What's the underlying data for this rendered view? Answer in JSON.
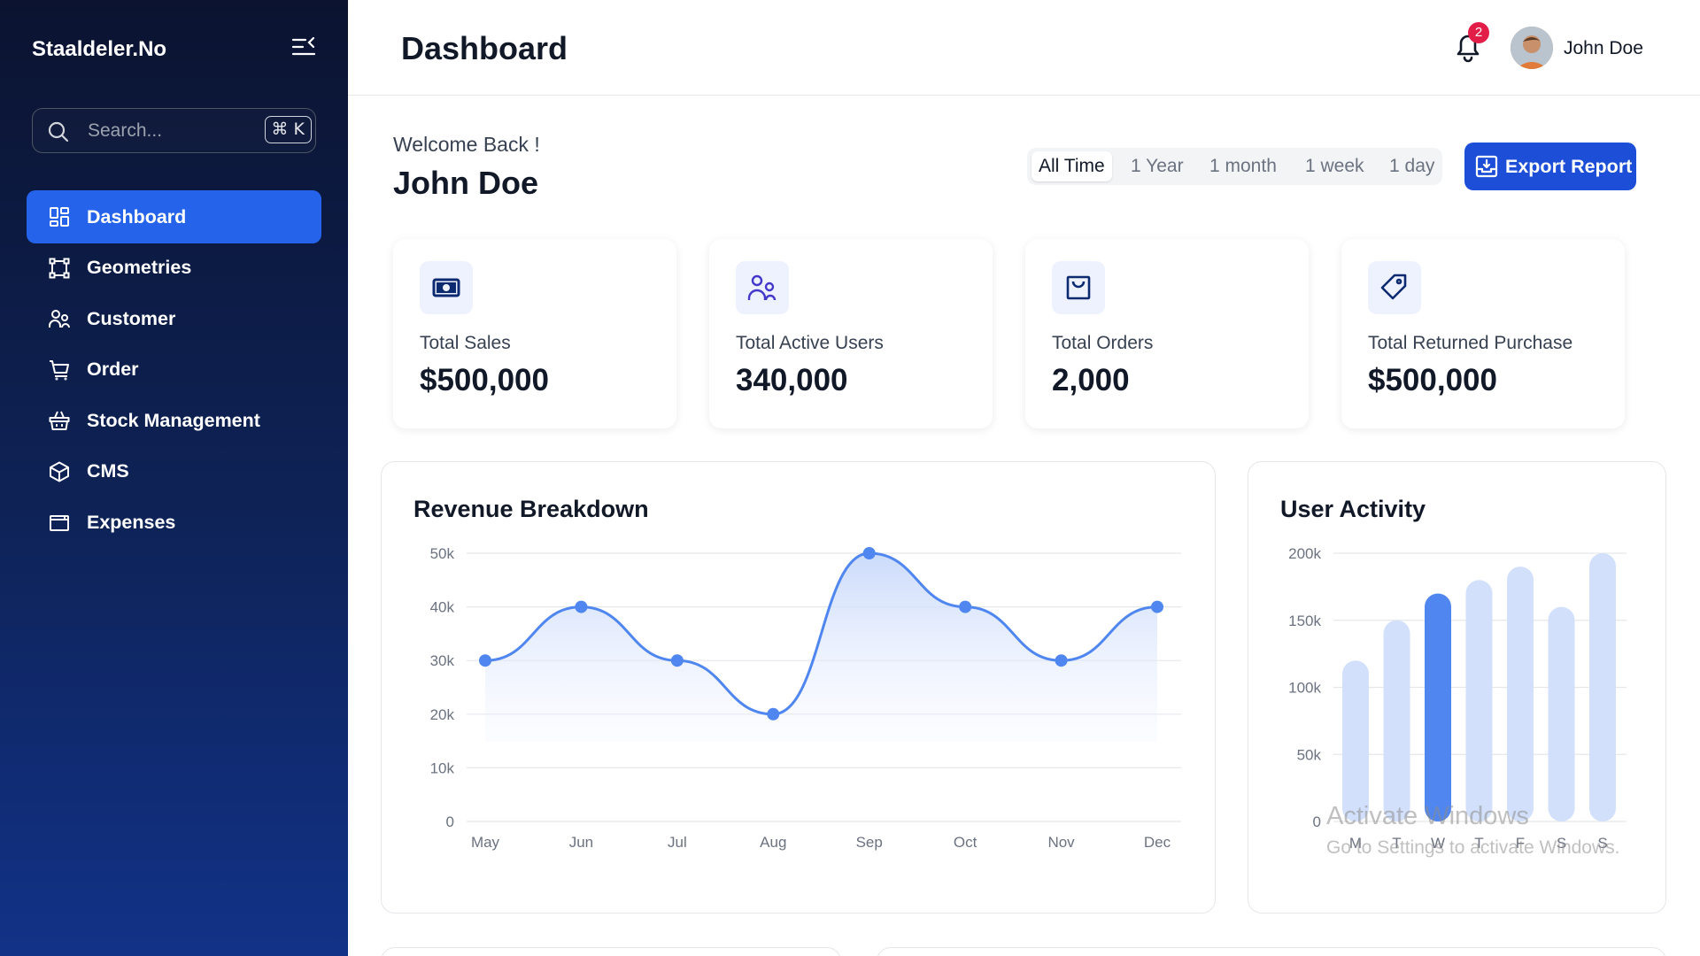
{
  "sidebar": {
    "brand": "Staaldeler.No",
    "search": {
      "placeholder": "Search...",
      "shortcut": "⌘ K"
    },
    "items": [
      {
        "label": "Dashboard",
        "icon": "grid-icon",
        "active": true
      },
      {
        "label": "Geometries",
        "icon": "vector-square-icon",
        "active": false
      },
      {
        "label": "Customer",
        "icon": "users-icon",
        "active": false
      },
      {
        "label": "Order",
        "icon": "cart-icon",
        "active": false
      },
      {
        "label": "Stock Management",
        "icon": "basket-icon",
        "active": false
      },
      {
        "label": "CMS",
        "icon": "cube-icon",
        "active": false
      },
      {
        "label": "Expenses",
        "icon": "wallet-icon",
        "active": false
      }
    ]
  },
  "header": {
    "title": "Dashboard",
    "notification_count": "2",
    "user_name": "John Doe"
  },
  "welcome": {
    "greeting": "Welcome Back !",
    "name": "John Doe"
  },
  "filters": {
    "options": [
      "All Time",
      "1 Year",
      "1 month",
      "1 week",
      "1 day"
    ],
    "selected": "All Time"
  },
  "export_label": "Export Report",
  "kpis": [
    {
      "label": "Total Sales",
      "value": "$500,000",
      "icon": "money-icon"
    },
    {
      "label": "Total Active Users",
      "value": "340,000",
      "icon": "users-icon"
    },
    {
      "label": "Total Orders",
      "value": "2,000",
      "icon": "shopping-bag-icon"
    },
    {
      "label": "Total Returned Purchase",
      "value": "$500,000",
      "icon": "tag-icon"
    }
  ],
  "colors": {
    "accent": "#2563eb",
    "line": "#4f86f0",
    "bar_light": "#d2e0fb",
    "bar_active": "#4f86f0"
  },
  "chart_data": [
    {
      "type": "line",
      "title": "Revenue Breakdown",
      "categories": [
        "May",
        "Jun",
        "Jul",
        "Aug",
        "Sep",
        "Oct",
        "Nov",
        "Dec"
      ],
      "values": [
        30000,
        40000,
        30000,
        20000,
        50000,
        40000,
        30000,
        40000
      ],
      "y_ticks": [
        "0",
        "10k",
        "20k",
        "30k",
        "40k",
        "50k"
      ],
      "ylim": [
        0,
        50000
      ],
      "area_fill": true,
      "grid": true,
      "smooth": true
    },
    {
      "type": "bar",
      "title": "User Activity",
      "categories": [
        "M",
        "T",
        "W",
        "T",
        "F",
        "S",
        "S"
      ],
      "values": [
        120000,
        150000,
        170000,
        180000,
        190000,
        160000,
        200000
      ],
      "highlight_index": 2,
      "y_ticks": [
        "0",
        "50k",
        "100k",
        "150k",
        "200k"
      ],
      "ylim": [
        0,
        200000
      ],
      "grid": true
    }
  ],
  "watermark": {
    "line1": "Activate Windows",
    "line2": "Go to Settings to activate Windows."
  }
}
